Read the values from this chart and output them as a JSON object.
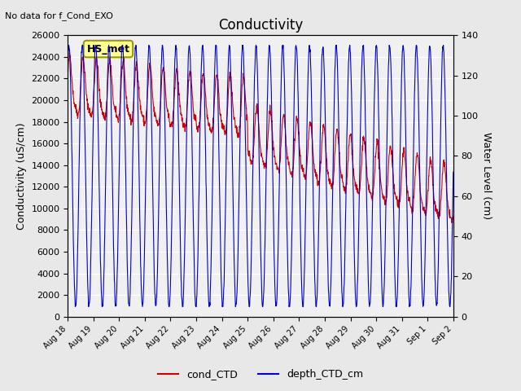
{
  "title": "Conductivity",
  "top_left_text": "No data for f_Cond_EXO",
  "ylabel_left": "Conductivity (uS/cm)",
  "ylabel_right": "Water Level (cm)",
  "ylim_left": [
    0,
    26000
  ],
  "ylim_right": [
    0,
    140
  ],
  "legend_label_red": "cond_CTD",
  "legend_label_blue": "depth_CTD_cm",
  "legend_box_label": "HS_met",
  "bg_color": "#e8e8e8",
  "plot_bg_color": "#f0f0f0",
  "red_color": "#cc0000",
  "blue_color": "#0000cc",
  "x_tick_labels": [
    "Aug 18",
    "Aug 19",
    "Aug 20",
    "Aug 21",
    "Aug 22",
    "Aug 23",
    "Aug 24",
    "Aug 25",
    "Aug 26",
    "Aug 27",
    "Aug 28",
    "Aug 29",
    "Aug 30",
    "Aug 31",
    "Sep 1",
    "Sep 2"
  ],
  "num_days": 15
}
